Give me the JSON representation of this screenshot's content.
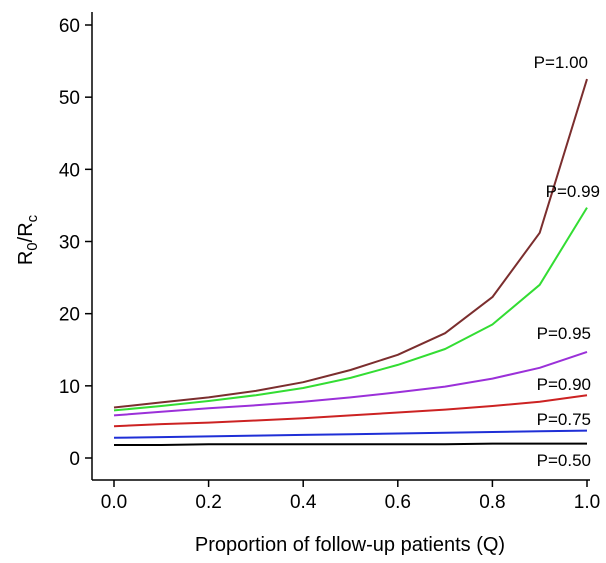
{
  "chart_data": {
    "type": "line",
    "xlabel": "Proportion of follow-up patients (Q)",
    "ylabel_main": "R",
    "ylabel_sub1": "0",
    "ylabel_slash": "/R",
    "ylabel_sub2": "c",
    "xlim": [
      0.0,
      1.0
    ],
    "ylim": [
      0,
      60
    ],
    "x_ticks": [
      0.0,
      0.2,
      0.4,
      0.6,
      0.8,
      1.0
    ],
    "x_tick_labels": [
      "0.0",
      "0.2",
      "0.4",
      "0.6",
      "0.8",
      "1.0"
    ],
    "y_ticks": [
      0,
      10,
      20,
      30,
      40,
      50,
      60
    ],
    "y_tick_labels": [
      "0",
      "10",
      "20",
      "30",
      "40",
      "50",
      "60"
    ],
    "grid": false,
    "x": [
      0.0,
      0.1,
      0.2,
      0.3,
      0.4,
      0.5,
      0.6,
      0.7,
      0.8,
      0.9,
      1.0
    ],
    "series": [
      {
        "name": "P=1.00",
        "color": "#7b2e2e",
        "values": [
          7.0,
          7.7,
          8.4,
          9.3,
          10.5,
          12.2,
          14.3,
          17.3,
          22.3,
          31.2,
          52.5
        ]
      },
      {
        "name": "P=0.99",
        "color": "#33dd33",
        "values": [
          6.6,
          7.2,
          7.9,
          8.7,
          9.7,
          11.1,
          12.9,
          15.1,
          18.5,
          24.0,
          34.7
        ]
      },
      {
        "name": "P=0.95",
        "color": "#9b30d9",
        "values": [
          5.9,
          6.4,
          6.9,
          7.3,
          7.8,
          8.4,
          9.1,
          9.9,
          11.0,
          12.5,
          14.7
        ]
      },
      {
        "name": "P=0.90",
        "color": "#cc2222",
        "values": [
          4.4,
          4.7,
          4.9,
          5.2,
          5.5,
          5.9,
          6.3,
          6.7,
          7.2,
          7.8,
          8.7
        ]
      },
      {
        "name": "P=0.75",
        "color": "#1f2fd6",
        "values": [
          2.8,
          2.9,
          3.0,
          3.1,
          3.2,
          3.3,
          3.4,
          3.5,
          3.6,
          3.7,
          3.8
        ]
      },
      {
        "name": "P=0.50",
        "color": "#000000",
        "values": [
          1.8,
          1.8,
          1.9,
          1.9,
          1.9,
          1.9,
          1.9,
          1.9,
          2.0,
          2.0,
          2.0
        ]
      }
    ]
  }
}
